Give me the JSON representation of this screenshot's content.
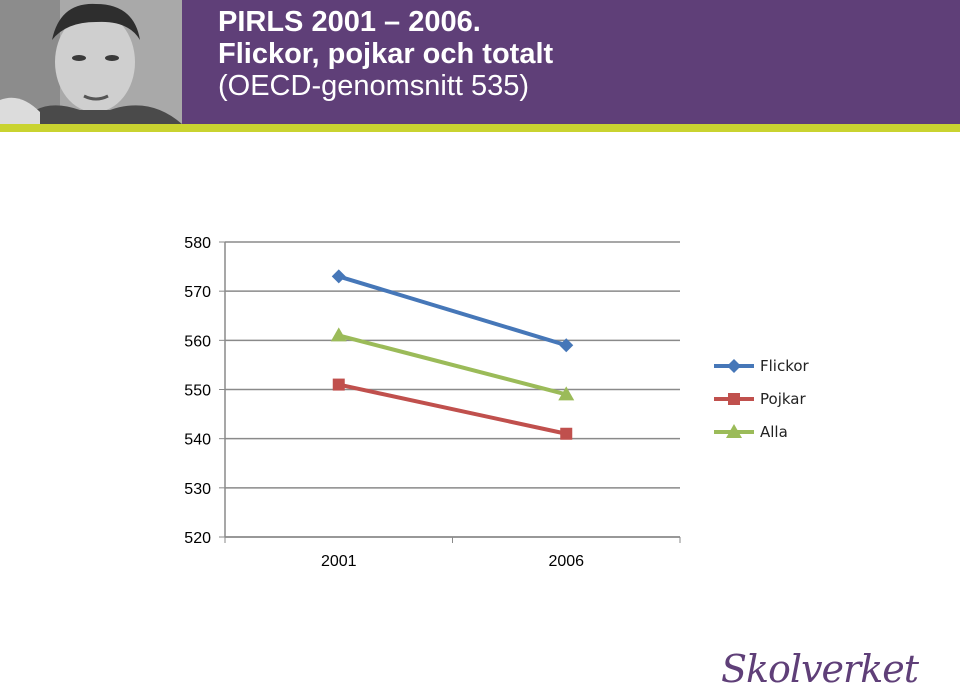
{
  "header": {
    "title_line1": "PIRLS 2001 – 2006.",
    "title_line2": "Flickor, pojkar och totalt",
    "title_line3": "(OECD-genomsnitt 535)"
  },
  "colors": {
    "header_bg": "#5f3f78",
    "accent_stripe": "#c9d330"
  },
  "logo": {
    "text": "Skolverket"
  },
  "chart_data": {
    "type": "line",
    "categories": [
      "2001",
      "2006"
    ],
    "series": [
      {
        "name": "Flickor",
        "values": [
          573,
          559
        ],
        "color": "#4677b8",
        "marker": "diamond"
      },
      {
        "name": "Pojkar",
        "values": [
          551,
          541
        ],
        "color": "#c0504d",
        "marker": "square"
      },
      {
        "name": "Alla",
        "values": [
          561,
          549
        ],
        "color": "#9bbb59",
        "marker": "triangle"
      }
    ],
    "ylim": [
      520,
      580
    ],
    "yticks": [
      520,
      530,
      540,
      550,
      560,
      570,
      580
    ],
    "grid": true,
    "legend": "right",
    "title": "",
    "xlabel": "",
    "ylabel": ""
  }
}
